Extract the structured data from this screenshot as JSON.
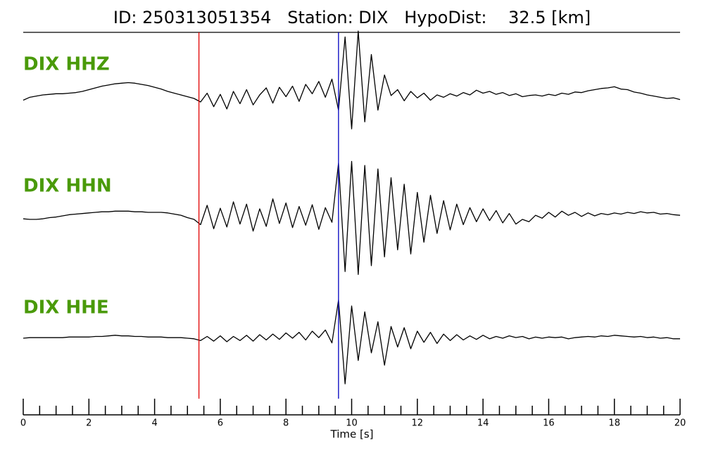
{
  "chart_data": {
    "type": "line",
    "title": "ID: 250313051354   Station: DIX   HypoDist:    32.5 [km]",
    "xlabel": "Time [s]",
    "xlim": [
      0,
      20
    ],
    "xticks": [
      0,
      2,
      4,
      6,
      8,
      10,
      12,
      14,
      16,
      18,
      20
    ],
    "xminorticks": [
      0.5,
      1,
      1.5,
      2.5,
      3,
      3.5,
      4.5,
      5,
      5.5,
      6.5,
      7,
      7.5,
      8.5,
      9,
      9.5,
      10.5,
      11,
      11.5,
      12.5,
      13,
      13.5,
      14.5,
      15,
      15.5,
      16.5,
      17,
      17.5,
      18.5,
      19,
      19.5
    ],
    "ylim": [
      -12,
      12
    ],
    "x": [
      0,
      0.2,
      0.4,
      0.6,
      0.8,
      1,
      1.2,
      1.4,
      1.6,
      1.8,
      2,
      2.2,
      2.4,
      2.6,
      2.8,
      3,
      3.2,
      3.4,
      3.6,
      3.8,
      4,
      4.2,
      4.4,
      4.6,
      4.8,
      5,
      5.2,
      5.4,
      5.6,
      5.8,
      6,
      6.2,
      6.4,
      6.6,
      6.8,
      7,
      7.2,
      7.4,
      7.6,
      7.8,
      8,
      8.2,
      8.4,
      8.6,
      8.8,
      9,
      9.2,
      9.4,
      9.6,
      9.8,
      10,
      10.2,
      10.4,
      10.6,
      10.8,
      11,
      11.2,
      11.4,
      11.6,
      11.8,
      12,
      12.2,
      12.4,
      12.6,
      12.8,
      13,
      13.2,
      13.4,
      13.6,
      13.8,
      14,
      14.2,
      14.4,
      14.6,
      14.8,
      15,
      15.2,
      15.4,
      15.6,
      15.8,
      16,
      16.2,
      16.4,
      16.6,
      16.8,
      17,
      17.2,
      17.4,
      17.6,
      17.8,
      18,
      18.2,
      18.4,
      18.6,
      18.8,
      19,
      19.2,
      19.4,
      19.6,
      19.8,
      20
    ],
    "series": [
      {
        "name": "DIX HHZ",
        "color": "#000000",
        "values": [
          -0.3,
          0.2,
          0.4,
          0.6,
          0.7,
          0.8,
          0.8,
          0.9,
          1.0,
          1.2,
          1.5,
          1.8,
          2.1,
          2.3,
          2.5,
          2.6,
          2.7,
          2.6,
          2.4,
          2.2,
          1.9,
          1.6,
          1.2,
          0.9,
          0.6,
          0.3,
          0.0,
          -0.6,
          0.9,
          -1.4,
          0.7,
          -1.8,
          1.2,
          -0.9,
          1.5,
          -1.1,
          0.6,
          1.8,
          -0.8,
          1.9,
          0.3,
          2.1,
          -0.5,
          2.4,
          0.8,
          2.9,
          0.2,
          3.3,
          -2.0,
          10.5,
          -5.2,
          11.5,
          -4.0,
          7.5,
          -2.0,
          4.0,
          0.5,
          1.5,
          -0.4,
          1.2,
          0.1,
          0.9,
          -0.3,
          0.6,
          0.2,
          0.8,
          0.4,
          1.0,
          0.6,
          1.4,
          0.9,
          1.2,
          0.7,
          1.0,
          0.5,
          0.8,
          0.3,
          0.5,
          0.6,
          0.4,
          0.7,
          0.5,
          0.9,
          0.7,
          1.1,
          1.0,
          1.3,
          1.5,
          1.7,
          1.8,
          2.0,
          1.6,
          1.5,
          1.1,
          0.9,
          0.6,
          0.4,
          0.2,
          0.0,
          0.1,
          -0.2
        ]
      },
      {
        "name": "DIX HHN",
        "color": "#000000",
        "values": [
          -0.5,
          -0.6,
          -0.6,
          -0.5,
          -0.3,
          -0.2,
          0,
          0.2,
          0.3,
          0.4,
          0.5,
          0.6,
          0.7,
          0.7,
          0.8,
          0.8,
          0.8,
          0.7,
          0.7,
          0.6,
          0.6,
          0.6,
          0.5,
          0.3,
          0.1,
          -0.3,
          -0.6,
          -1.5,
          1.8,
          -2.2,
          1.3,
          -1.9,
          2.4,
          -1.4,
          2.0,
          -2.6,
          1.2,
          -1.8,
          2.9,
          -1.3,
          2.2,
          -2.0,
          1.6,
          -1.6,
          1.9,
          -2.3,
          1.4,
          -1.1,
          9.0,
          -9.5,
          9.3,
          -10.0,
          8.6,
          -8.5,
          8.0,
          -7.0,
          6.5,
          -5.8,
          5.4,
          -6.5,
          4.0,
          -4.5,
          3.5,
          -3.0,
          2.6,
          -2.4,
          2.0,
          -1.5,
          1.4,
          -1.0,
          1.2,
          -0.8,
          0.9,
          -1.2,
          0.4,
          -1.4,
          -0.6,
          -1.0,
          0.1,
          -0.4,
          0.6,
          -0.2,
          0.8,
          0.1,
          0.6,
          -0.1,
          0.5,
          0.0,
          0.4,
          0.2,
          0.5,
          0.3,
          0.6,
          0.4,
          0.7,
          0.5,
          0.6,
          0.3,
          0.4,
          0.2,
          0.1
        ]
      },
      {
        "name": "DIX HHE",
        "color": "#000000",
        "values": [
          0,
          0.1,
          0.1,
          0.1,
          0.1,
          0.1,
          0.1,
          0.2,
          0.2,
          0.2,
          0.2,
          0.3,
          0.3,
          0.4,
          0.5,
          0.4,
          0.4,
          0.3,
          0.3,
          0.2,
          0.2,
          0.2,
          0.1,
          0.1,
          0.1,
          0.0,
          -0.1,
          -0.4,
          0.3,
          -0.5,
          0.4,
          -0.6,
          0.3,
          -0.4,
          0.5,
          -0.5,
          0.6,
          -0.3,
          0.7,
          -0.2,
          0.9,
          0.0,
          1.0,
          -0.3,
          1.2,
          0.1,
          1.4,
          -0.8,
          6.5,
          -7.8,
          5.5,
          -3.8,
          4.5,
          -2.5,
          2.8,
          -4.6,
          2.0,
          -1.5,
          1.8,
          -1.8,
          1.2,
          -0.7,
          1.0,
          -0.9,
          0.7,
          -0.4,
          0.6,
          -0.3,
          0.4,
          -0.2,
          0.5,
          -0.1,
          0.3,
          0.0,
          0.4,
          0.1,
          0.3,
          -0.1,
          0.2,
          0.0,
          0.2,
          0.1,
          0.2,
          -0.1,
          0.1,
          0.2,
          0.3,
          0.2,
          0.4,
          0.3,
          0.5,
          0.4,
          0.3,
          0.2,
          0.3,
          0.1,
          0.2,
          0.0,
          0.1,
          -0.1,
          -0.1
        ]
      }
    ],
    "label_color": "#4a9a0a",
    "picks": [
      {
        "x": 5.35,
        "color": "#e00000"
      },
      {
        "x": 9.6,
        "color": "#0000c0"
      }
    ]
  }
}
